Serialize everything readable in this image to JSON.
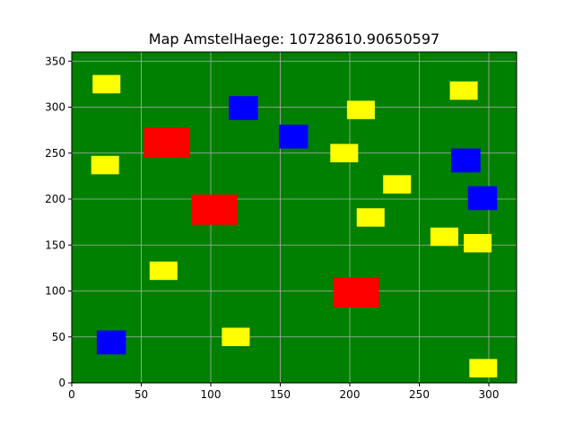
{
  "chart_data": {
    "type": "scatter",
    "title": "Map AmstelHaege: 10728610.90650597",
    "xlabel": "",
    "ylabel": "",
    "xlim": [
      0,
      320
    ],
    "ylim": [
      0,
      360
    ],
    "x_ticks": [
      0,
      50,
      100,
      150,
      200,
      250,
      300
    ],
    "y_ticks": [
      0,
      50,
      100,
      150,
      200,
      250,
      300,
      350
    ],
    "grid": true,
    "background_color": "#008000",
    "grid_color": "#b0b0b0",
    "legend": "none",
    "colors": {
      "yellow": "#ffff00",
      "red": "#ff0000",
      "blue": "#0000ff"
    },
    "rectangles": [
      {
        "color": "yellow",
        "x": [
          15,
          35
        ],
        "y": [
          315,
          335
        ]
      },
      {
        "color": "yellow",
        "x": [
          14,
          34
        ],
        "y": [
          227,
          247
        ]
      },
      {
        "color": "yellow",
        "x": [
          56,
          76
        ],
        "y": [
          112,
          132
        ]
      },
      {
        "color": "yellow",
        "x": [
          108,
          128
        ],
        "y": [
          40,
          60
        ]
      },
      {
        "color": "yellow",
        "x": [
          186,
          206
        ],
        "y": [
          240,
          260
        ]
      },
      {
        "color": "yellow",
        "x": [
          198,
          218
        ],
        "y": [
          287,
          307
        ]
      },
      {
        "color": "yellow",
        "x": [
          205,
          225
        ],
        "y": [
          170,
          190
        ]
      },
      {
        "color": "yellow",
        "x": [
          224,
          244
        ],
        "y": [
          206,
          226
        ]
      },
      {
        "color": "yellow",
        "x": [
          258,
          278
        ],
        "y": [
          149,
          169
        ]
      },
      {
        "color": "yellow",
        "x": [
          272,
          292
        ],
        "y": [
          308,
          328
        ]
      },
      {
        "color": "yellow",
        "x": [
          282,
          302
        ],
        "y": [
          142,
          162
        ]
      },
      {
        "color": "yellow",
        "x": [
          286,
          306
        ],
        "y": [
          6,
          26
        ]
      },
      {
        "color": "red",
        "x": [
          52,
          85
        ],
        "y": [
          245,
          278
        ]
      },
      {
        "color": "red",
        "x": [
          86,
          119
        ],
        "y": [
          172,
          205
        ]
      },
      {
        "color": "red",
        "x": [
          188,
          221
        ],
        "y": [
          82,
          115
        ]
      },
      {
        "color": "blue",
        "x": [
          18,
          39
        ],
        "y": [
          31,
          57
        ]
      },
      {
        "color": "blue",
        "x": [
          113,
          134
        ],
        "y": [
          286,
          312
        ]
      },
      {
        "color": "blue",
        "x": [
          149,
          170
        ],
        "y": [
          255,
          281
        ]
      },
      {
        "color": "blue",
        "x": [
          273,
          294
        ],
        "y": [
          229,
          255
        ]
      },
      {
        "color": "blue",
        "x": [
          285,
          306
        ],
        "y": [
          188,
          214
        ]
      }
    ]
  }
}
